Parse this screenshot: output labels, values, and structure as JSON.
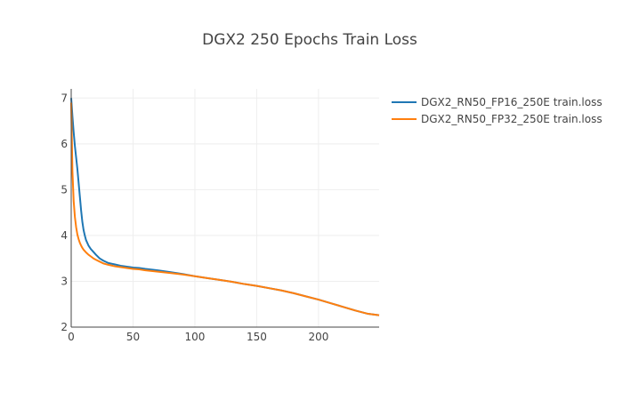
{
  "chart_data": {
    "type": "line",
    "title": "DGX2 250 Epochs Train Loss",
    "xlabel": "",
    "ylabel": "",
    "xlim": [
      0,
      249
    ],
    "ylim": [
      2,
      7.2
    ],
    "x_ticks": [
      0,
      50,
      100,
      150,
      200
    ],
    "y_ticks": [
      2,
      3,
      4,
      5,
      6,
      7
    ],
    "grid": true,
    "legend_position": "top-right, outside plot area",
    "series": [
      {
        "name": "DGX2_RN50_FP16_250E train.loss",
        "color": "#1f77b4",
        "x": [
          0,
          1,
          2,
          3,
          4,
          5,
          6,
          7,
          8,
          9,
          10,
          11,
          12,
          14,
          16,
          18,
          20,
          23,
          26,
          30,
          35,
          40,
          45,
          50,
          55,
          60,
          70,
          80,
          90,
          100,
          110,
          120,
          130,
          140,
          150,
          160,
          170,
          180,
          190,
          200,
          210,
          220,
          230,
          240,
          249
        ],
        "y": [
          7.0,
          6.6,
          6.25,
          5.95,
          5.7,
          5.45,
          5.15,
          4.85,
          4.55,
          4.3,
          4.12,
          4.0,
          3.9,
          3.78,
          3.7,
          3.64,
          3.58,
          3.5,
          3.45,
          3.4,
          3.37,
          3.34,
          3.32,
          3.3,
          3.29,
          3.27,
          3.24,
          3.2,
          3.16,
          3.11,
          3.07,
          3.03,
          2.99,
          2.94,
          2.9,
          2.85,
          2.8,
          2.74,
          2.67,
          2.6,
          2.52,
          2.44,
          2.36,
          2.29,
          2.26
        ]
      },
      {
        "name": "DGX2_RN50_FP32_250E train.loss",
        "color": "#ff7f0e",
        "x": [
          0,
          1,
          2,
          3,
          4,
          5,
          6,
          7,
          8,
          9,
          10,
          11,
          12,
          14,
          16,
          18,
          20,
          23,
          26,
          30,
          35,
          40,
          45,
          50,
          55,
          60,
          70,
          80,
          90,
          100,
          110,
          120,
          130,
          140,
          150,
          160,
          170,
          180,
          190,
          200,
          210,
          220,
          230,
          240,
          249
        ],
        "y": [
          6.9,
          5.4,
          4.75,
          4.4,
          4.18,
          4.02,
          3.92,
          3.84,
          3.78,
          3.73,
          3.69,
          3.66,
          3.63,
          3.58,
          3.54,
          3.5,
          3.47,
          3.43,
          3.39,
          3.36,
          3.33,
          3.31,
          3.29,
          3.27,
          3.26,
          3.24,
          3.21,
          3.18,
          3.15,
          3.11,
          3.07,
          3.03,
          2.99,
          2.94,
          2.9,
          2.85,
          2.8,
          2.74,
          2.67,
          2.6,
          2.52,
          2.44,
          2.36,
          2.29,
          2.26
        ]
      }
    ]
  }
}
